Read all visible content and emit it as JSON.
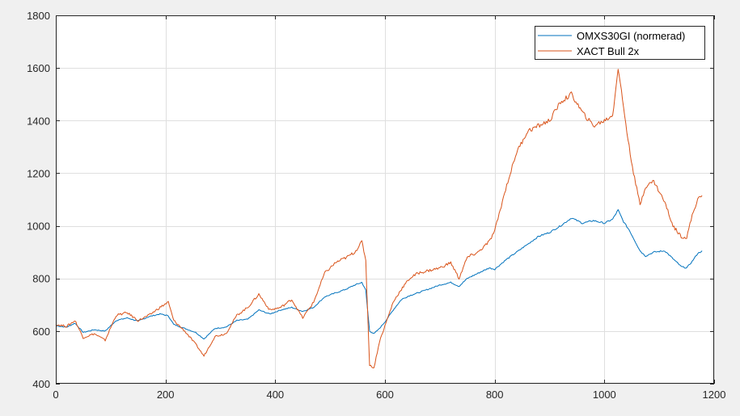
{
  "chart_data": {
    "type": "line",
    "xlim": [
      0,
      1200
    ],
    "ylim": [
      400,
      1800
    ],
    "xticks": [
      0,
      200,
      400,
      600,
      800,
      1000,
      1200
    ],
    "yticks": [
      400,
      600,
      800,
      1000,
      1200,
      1400,
      1600,
      1800
    ],
    "xtick_labels": [
      "0",
      "200",
      "400",
      "600",
      "800",
      "1000",
      "1200"
    ],
    "ytick_labels": [
      "400",
      "600",
      "800",
      "1000",
      "1200",
      "1400",
      "1600",
      "1800"
    ],
    "grid": true,
    "legend_position": "top-right",
    "series": [
      {
        "name": "OMXS30GI (normerad)",
        "color": "#0072BD",
        "points": [
          [
            0,
            620
          ],
          [
            20,
            615
          ],
          [
            35,
            630
          ],
          [
            50,
            595
          ],
          [
            70,
            605
          ],
          [
            90,
            600
          ],
          [
            110,
            640
          ],
          [
            130,
            650
          ],
          [
            150,
            638
          ],
          [
            170,
            655
          ],
          [
            190,
            665
          ],
          [
            205,
            658
          ],
          [
            215,
            625
          ],
          [
            235,
            610
          ],
          [
            255,
            595
          ],
          [
            270,
            570
          ],
          [
            290,
            610
          ],
          [
            310,
            615
          ],
          [
            330,
            640
          ],
          [
            350,
            645
          ],
          [
            370,
            680
          ],
          [
            390,
            665
          ],
          [
            410,
            680
          ],
          [
            430,
            690
          ],
          [
            450,
            675
          ],
          [
            470,
            690
          ],
          [
            490,
            730
          ],
          [
            510,
            745
          ],
          [
            530,
            760
          ],
          [
            545,
            775
          ],
          [
            558,
            785
          ],
          [
            565,
            755
          ],
          [
            572,
            600
          ],
          [
            580,
            590
          ],
          [
            590,
            610
          ],
          [
            600,
            635
          ],
          [
            615,
            680
          ],
          [
            630,
            720
          ],
          [
            645,
            735
          ],
          [
            660,
            745
          ],
          [
            680,
            760
          ],
          [
            700,
            775
          ],
          [
            720,
            785
          ],
          [
            735,
            770
          ],
          [
            750,
            800
          ],
          [
            770,
            820
          ],
          [
            790,
            840
          ],
          [
            800,
            835
          ],
          [
            820,
            870
          ],
          [
            840,
            900
          ],
          [
            860,
            930
          ],
          [
            880,
            960
          ],
          [
            900,
            975
          ],
          [
            920,
            1000
          ],
          [
            940,
            1030
          ],
          [
            960,
            1010
          ],
          [
            980,
            1020
          ],
          [
            1000,
            1010
          ],
          [
            1015,
            1025
          ],
          [
            1025,
            1060
          ],
          [
            1035,
            1015
          ],
          [
            1045,
            985
          ],
          [
            1055,
            945
          ],
          [
            1065,
            905
          ],
          [
            1075,
            885
          ],
          [
            1090,
            900
          ],
          [
            1110,
            905
          ],
          [
            1125,
            875
          ],
          [
            1140,
            845
          ],
          [
            1150,
            840
          ],
          [
            1160,
            865
          ],
          [
            1170,
            895
          ],
          [
            1178,
            905
          ]
        ]
      },
      {
        "name": "XACT Bull 2x",
        "color": "#D95319",
        "points": [
          [
            0,
            625
          ],
          [
            20,
            618
          ],
          [
            35,
            640
          ],
          [
            50,
            575
          ],
          [
            70,
            590
          ],
          [
            90,
            565
          ],
          [
            110,
            660
          ],
          [
            130,
            670
          ],
          [
            150,
            640
          ],
          [
            170,
            660
          ],
          [
            190,
            690
          ],
          [
            205,
            710
          ],
          [
            215,
            640
          ],
          [
            235,
            600
          ],
          [
            255,
            550
          ],
          [
            270,
            505
          ],
          [
            290,
            580
          ],
          [
            310,
            590
          ],
          [
            330,
            660
          ],
          [
            350,
            690
          ],
          [
            370,
            740
          ],
          [
            390,
            680
          ],
          [
            410,
            690
          ],
          [
            430,
            720
          ],
          [
            450,
            650
          ],
          [
            470,
            710
          ],
          [
            490,
            820
          ],
          [
            510,
            860
          ],
          [
            530,
            880
          ],
          [
            545,
            900
          ],
          [
            558,
            940
          ],
          [
            565,
            870
          ],
          [
            572,
            470
          ],
          [
            580,
            460
          ],
          [
            590,
            560
          ],
          [
            600,
            620
          ],
          [
            615,
            710
          ],
          [
            630,
            760
          ],
          [
            645,
            800
          ],
          [
            660,
            820
          ],
          [
            680,
            830
          ],
          [
            700,
            840
          ],
          [
            720,
            860
          ],
          [
            735,
            800
          ],
          [
            750,
            880
          ],
          [
            770,
            900
          ],
          [
            790,
            940
          ],
          [
            800,
            980
          ],
          [
            820,
            1140
          ],
          [
            840,
            1280
          ],
          [
            860,
            1360
          ],
          [
            880,
            1380
          ],
          [
            900,
            1400
          ],
          [
            920,
            1470
          ],
          [
            940,
            1500
          ],
          [
            960,
            1430
          ],
          [
            980,
            1380
          ],
          [
            1000,
            1400
          ],
          [
            1015,
            1420
          ],
          [
            1025,
            1600
          ],
          [
            1035,
            1450
          ],
          [
            1045,
            1300
          ],
          [
            1055,
            1180
          ],
          [
            1065,
            1080
          ],
          [
            1075,
            1150
          ],
          [
            1090,
            1170
          ],
          [
            1110,
            1090
          ],
          [
            1125,
            1000
          ],
          [
            1140,
            960
          ],
          [
            1150,
            955
          ],
          [
            1160,
            1040
          ],
          [
            1170,
            1100
          ],
          [
            1178,
            1115
          ]
        ]
      }
    ]
  }
}
